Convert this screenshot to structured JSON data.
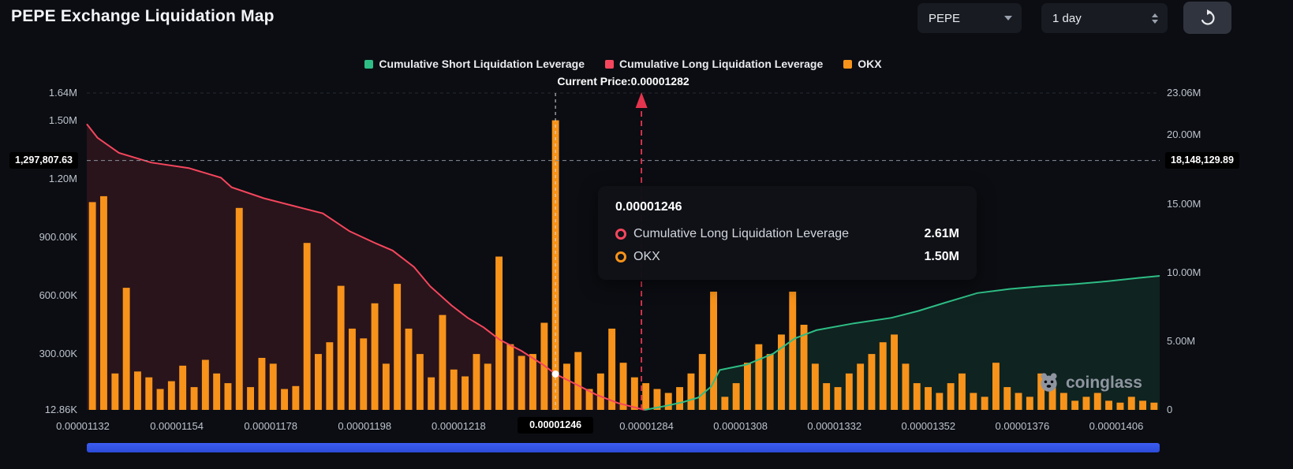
{
  "header": {
    "title": "PEPE Exchange Liquidation Map",
    "coin_select": {
      "value": "PEPE"
    },
    "interval_select": {
      "value": "1 day"
    }
  },
  "legend": {
    "items": [
      {
        "label": "Cumulative Short Liquidation Leverage",
        "color": "#2ebd85"
      },
      {
        "label": "Cumulative Long Liquidation Leverage",
        "color": "#f6465d"
      },
      {
        "label": "OKX",
        "color": "#f7931a"
      }
    ]
  },
  "annotations": {
    "current_price_label": "Current Price:0.00001282"
  },
  "tooltip": {
    "title": "0.00001246",
    "rows": [
      {
        "marker_color": "#f6465d",
        "label": "Cumulative Long Liquidation Leverage",
        "value": "2.61M"
      },
      {
        "marker_color": "#f7931a",
        "label": "OKX",
        "value": "1.50M"
      }
    ]
  },
  "crosshair": {
    "left_axis_value": "1,297,807.63",
    "right_axis_value": "18,148,129.89",
    "x_axis_value": "0.00001246"
  },
  "watermark": {
    "text": "coinglass"
  },
  "chart_data": {
    "type": "mixed-bar-line",
    "title": "PEPE Exchange Liquidation Map",
    "current_price": "0.00001282",
    "hover_price": "0.00001246",
    "legend_position": "top",
    "grid": false,
    "left_axis": {
      "unit": "K",
      "min_k": 12.86,
      "max_k": 1640,
      "ticks": [
        {
          "label": "1.64M",
          "value_k": 1640
        },
        {
          "label": "1.50M",
          "value_k": 1500
        },
        {
          "label": "1.20M",
          "value_k": 1200
        },
        {
          "label": "900.00K",
          "value_k": 900
        },
        {
          "label": "600.00K",
          "value_k": 600
        },
        {
          "label": "300.00K",
          "value_k": 300
        },
        {
          "label": "12.86K",
          "value_k": 12.86
        }
      ]
    },
    "right_axis": {
      "unit": "M",
      "max_m": 23.06,
      "ticks": [
        {
          "label": "23.06M",
          "value_m": 23.06
        },
        {
          "label": "20.00M",
          "value_m": 20
        },
        {
          "label": "15.00M",
          "value_m": 15
        },
        {
          "label": "10.00M",
          "value_m": 10
        },
        {
          "label": "5.00M",
          "value_m": 5
        },
        {
          "label": "0",
          "value_m": 0
        }
      ]
    },
    "x_ticks": [
      "0.00001132",
      "0.00001154",
      "0.00001178",
      "0.00001198",
      "0.00001218",
      "0.00001246",
      "0.00001284",
      "0.00001308",
      "0.00001332",
      "0.00001352",
      "0.00001376",
      "0.00001406"
    ],
    "hover_tick_index": 5,
    "bars": {
      "name": "OKX",
      "color": "#f7931a",
      "values_k": [
        1080,
        1110,
        200,
        640,
        210,
        180,
        120,
        160,
        240,
        130,
        270,
        200,
        150,
        1050,
        130,
        280,
        250,
        120,
        135,
        870,
        300,
        360,
        650,
        430,
        380,
        560,
        250,
        660,
        430,
        300,
        180,
        500,
        220,
        185,
        300,
        250,
        800,
        350,
        290,
        300,
        460,
        1500,
        250,
        310,
        120,
        200,
        430,
        255,
        180,
        150,
        120,
        100,
        130,
        200,
        300,
        620,
        80,
        150,
        255,
        350,
        300,
        400,
        620,
        450,
        250,
        150,
        130,
        200,
        250,
        300,
        360,
        400,
        250,
        150,
        130,
        100,
        150,
        200,
        100,
        80,
        255,
        130,
        100,
        80,
        200,
        150,
        100,
        60,
        80,
        100,
        60,
        50,
        80,
        60,
        50
      ]
    },
    "series": [
      {
        "name": "Cumulative Long Liquidation Leverage",
        "color": "#f6465d",
        "fill": "rgba(246,70,93,0.13)",
        "points": [
          [
            0.0,
            20.8
          ],
          [
            0.01,
            19.8
          ],
          [
            0.03,
            18.7
          ],
          [
            0.06,
            18.0
          ],
          [
            0.095,
            17.6
          ],
          [
            0.125,
            16.9
          ],
          [
            0.135,
            16.2
          ],
          [
            0.165,
            15.4
          ],
          [
            0.195,
            14.8
          ],
          [
            0.22,
            14.3
          ],
          [
            0.245,
            13.0
          ],
          [
            0.27,
            12.1
          ],
          [
            0.285,
            11.6
          ],
          [
            0.305,
            10.4
          ],
          [
            0.32,
            9.0
          ],
          [
            0.34,
            7.6
          ],
          [
            0.355,
            6.7
          ],
          [
            0.37,
            6.0
          ],
          [
            0.385,
            5.1
          ],
          [
            0.405,
            4.3
          ],
          [
            0.425,
            3.3
          ],
          [
            0.437,
            2.61
          ],
          [
            0.455,
            1.9
          ],
          [
            0.475,
            1.1
          ],
          [
            0.495,
            0.5
          ],
          [
            0.515,
            0.1
          ],
          [
            0.52,
            0.0
          ]
        ]
      },
      {
        "name": "Cumulative Short Liquidation Leverage",
        "color": "#2ebd85",
        "fill": "rgba(46,189,133,0.13)",
        "points": [
          [
            0.52,
            0.0
          ],
          [
            0.54,
            0.3
          ],
          [
            0.555,
            0.55
          ],
          [
            0.57,
            0.9
          ],
          [
            0.582,
            1.7
          ],
          [
            0.59,
            2.9
          ],
          [
            0.615,
            3.3
          ],
          [
            0.64,
            4.1
          ],
          [
            0.66,
            5.2
          ],
          [
            0.68,
            5.8
          ],
          [
            0.715,
            6.3
          ],
          [
            0.75,
            6.7
          ],
          [
            0.775,
            7.2
          ],
          [
            0.8,
            7.8
          ],
          [
            0.83,
            8.5
          ],
          [
            0.86,
            8.8
          ],
          [
            0.89,
            9.0
          ],
          [
            0.92,
            9.15
          ],
          [
            0.95,
            9.35
          ],
          [
            0.98,
            9.6
          ],
          [
            1.0,
            9.75
          ]
        ]
      }
    ],
    "hover": {
      "bar_index": 41,
      "bar_value_k": 1500,
      "long_value_m": 2.61
    },
    "crosshair_values": {
      "left_k": 1297.80763,
      "right_m": 18.14812989
    },
    "current_price_fraction": 0.517
  }
}
